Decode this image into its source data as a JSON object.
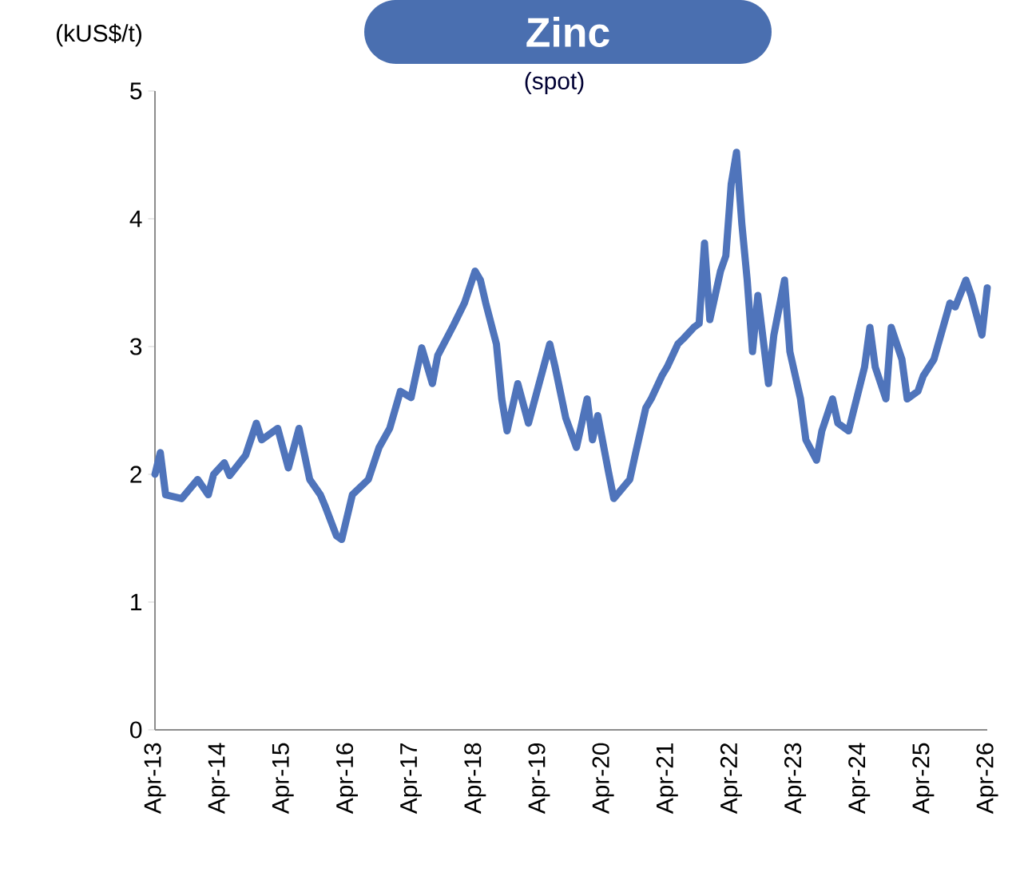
{
  "chart_data": {
    "type": "line",
    "title": "Zinc",
    "subtitle": "(spot)",
    "ylabel": "(kUS$/t)",
    "color": "#4f74bb",
    "line_style": "solid",
    "marker": "none",
    "grid": false,
    "x": [
      "2013-04",
      "2013-05",
      "2013-06",
      "2013-09",
      "2013-12",
      "2014-02",
      "2014-03",
      "2014-05",
      "2014-06",
      "2014-09",
      "2014-11",
      "2014-12",
      "2015-03",
      "2015-05",
      "2015-07",
      "2015-09",
      "2015-11",
      "2015-12",
      "2016-02",
      "2016-03",
      "2016-05",
      "2016-08",
      "2016-10",
      "2016-12",
      "2017-02",
      "2017-04",
      "2017-06",
      "2017-08",
      "2017-09",
      "2017-12",
      "2018-02",
      "2018-04",
      "2018-05",
      "2018-06",
      "2018-08",
      "2018-09",
      "2018-10",
      "2018-12",
      "2019-02",
      "2019-04",
      "2019-06",
      "2019-07",
      "2019-09",
      "2019-11",
      "2020-01",
      "2020-02",
      "2020-03",
      "2020-05",
      "2020-06",
      "2020-09",
      "2020-10",
      "2020-12",
      "2021-01",
      "2021-03",
      "2021-04",
      "2021-06",
      "2021-07",
      "2021-09",
      "2021-10",
      "2021-11",
      "2021-12",
      "2022-02",
      "2022-03",
      "2022-04",
      "2022-05",
      "2022-06",
      "2022-07",
      "2022-08",
      "2022-09",
      "2022-11",
      "2022-12",
      "2023-02",
      "2023-03",
      "2023-05",
      "2023-06",
      "2023-08",
      "2023-09",
      "2023-11",
      "2023-12",
      "2024-02",
      "2024-05",
      "2024-06",
      "2024-07",
      "2024-09",
      "2024-10",
      "2024-12",
      "2025-01",
      "2025-03",
      "2025-04",
      "2025-06",
      "2025-09",
      "2025-10",
      "2025-12",
      "2026-01",
      "2026-03",
      "2026-04"
    ],
    "values": [
      2.0,
      2.17,
      1.84,
      1.81,
      1.96,
      1.84,
      2.0,
      2.09,
      1.99,
      2.15,
      2.4,
      2.27,
      2.36,
      2.05,
      2.36,
      1.96,
      1.84,
      1.74,
      1.52,
      1.49,
      1.84,
      1.96,
      2.21,
      2.36,
      2.65,
      2.6,
      2.99,
      2.71,
      2.93,
      3.17,
      3.34,
      3.59,
      3.52,
      3.34,
      3.02,
      2.59,
      2.34,
      2.71,
      2.4,
      2.71,
      3.02,
      2.84,
      2.44,
      2.21,
      2.59,
      2.27,
      2.46,
      2.02,
      1.81,
      1.96,
      2.15,
      2.52,
      2.59,
      2.77,
      2.84,
      3.02,
      3.06,
      3.15,
      3.18,
      3.81,
      3.21,
      3.59,
      3.71,
      4.27,
      4.52,
      3.96,
      3.52,
      2.96,
      3.4,
      2.71,
      3.09,
      3.52,
      2.96,
      2.59,
      2.27,
      2.11,
      2.34,
      2.59,
      2.4,
      2.34,
      2.84,
      3.15,
      2.84,
      2.59,
      3.15,
      2.9,
      2.59,
      2.65,
      2.77,
      2.9,
      3.34,
      3.31,
      3.52,
      3.4,
      3.09,
      3.46
    ],
    "xlim": [
      "2013-04",
      "2026-04"
    ],
    "xticks": [
      {
        "value": "2013-04",
        "label": "Apr-13"
      },
      {
        "value": "2014-04",
        "label": "Apr-14"
      },
      {
        "value": "2015-04",
        "label": "Apr-15"
      },
      {
        "value": "2016-04",
        "label": "Apr-16"
      },
      {
        "value": "2017-04",
        "label": "Apr-17"
      },
      {
        "value": "2018-04",
        "label": "Apr-18"
      },
      {
        "value": "2019-04",
        "label": "Apr-19"
      },
      {
        "value": "2020-04",
        "label": "Apr-20"
      },
      {
        "value": "2021-04",
        "label": "Apr-21"
      },
      {
        "value": "2022-04",
        "label": "Apr-22"
      },
      {
        "value": "2023-04",
        "label": "Apr-23"
      },
      {
        "value": "2024-04",
        "label": "Apr-24"
      },
      {
        "value": "2025-04",
        "label": "Apr-25"
      },
      {
        "value": "2026-04",
        "label": "Apr-26"
      }
    ],
    "ylim": [
      0,
      5
    ],
    "yticks": [
      0,
      1,
      2,
      3,
      4,
      5
    ]
  }
}
